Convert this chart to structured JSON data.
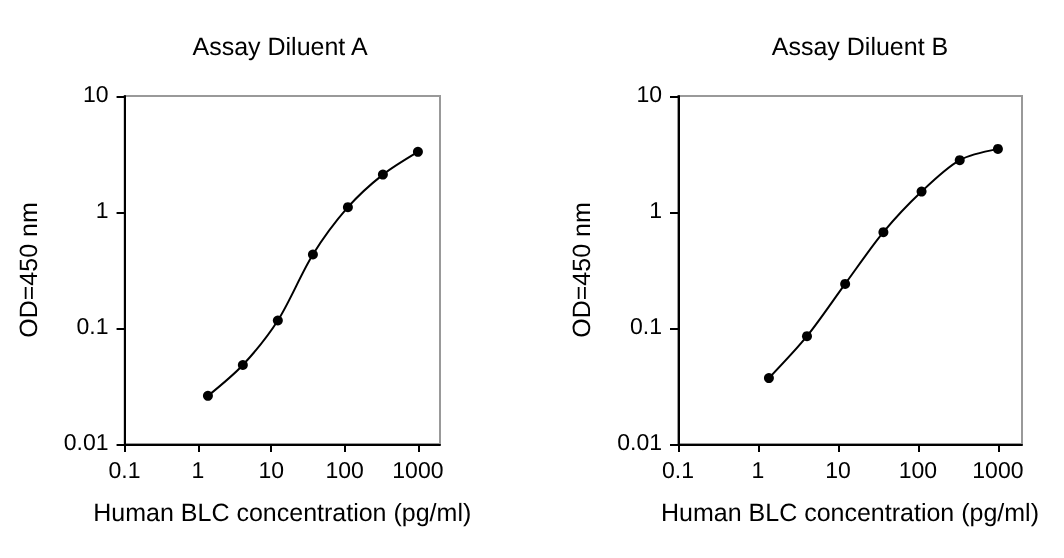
{
  "chart_data": [
    {
      "type": "line",
      "title": "Assay Diluent A",
      "xlabel": "Human BLC concentration (pg/ml)",
      "ylabel": "OD=450 nm",
      "log": "xy",
      "xlim": [
        0.1,
        2000
      ],
      "ylim": [
        0.01,
        10
      ],
      "xticks": [
        0.1,
        1,
        10,
        100,
        1000
      ],
      "yticks": [
        0.01,
        0.1,
        1,
        10
      ],
      "grid": false,
      "marker": "circle",
      "line_style": "solid",
      "series": [
        {
          "color": "#000000",
          "x": [
            1.37,
            4.1,
            12.3,
            37,
            111,
            333,
            1000
          ],
          "values": [
            0.026,
            0.048,
            0.116,
            0.43,
            1.1,
            2.1,
            3.3
          ]
        }
      ]
    },
    {
      "type": "line",
      "title": "Assay Diluent B",
      "xlabel": "Human BLC concentration (pg/ml)",
      "ylabel": "OD=450 nm",
      "log": "xy",
      "xlim": [
        0.1,
        2000
      ],
      "ylim": [
        0.01,
        10
      ],
      "xticks": [
        0.1,
        1,
        10,
        100,
        1000
      ],
      "yticks": [
        0.01,
        0.1,
        1,
        10
      ],
      "grid": false,
      "marker": "circle",
      "line_style": "solid",
      "series": [
        {
          "color": "#000000",
          "x": [
            1.37,
            4.1,
            12.3,
            37,
            111,
            333,
            1000
          ],
          "values": [
            0.037,
            0.085,
            0.24,
            0.67,
            1.5,
            2.8,
            3.5
          ]
        }
      ]
    }
  ]
}
